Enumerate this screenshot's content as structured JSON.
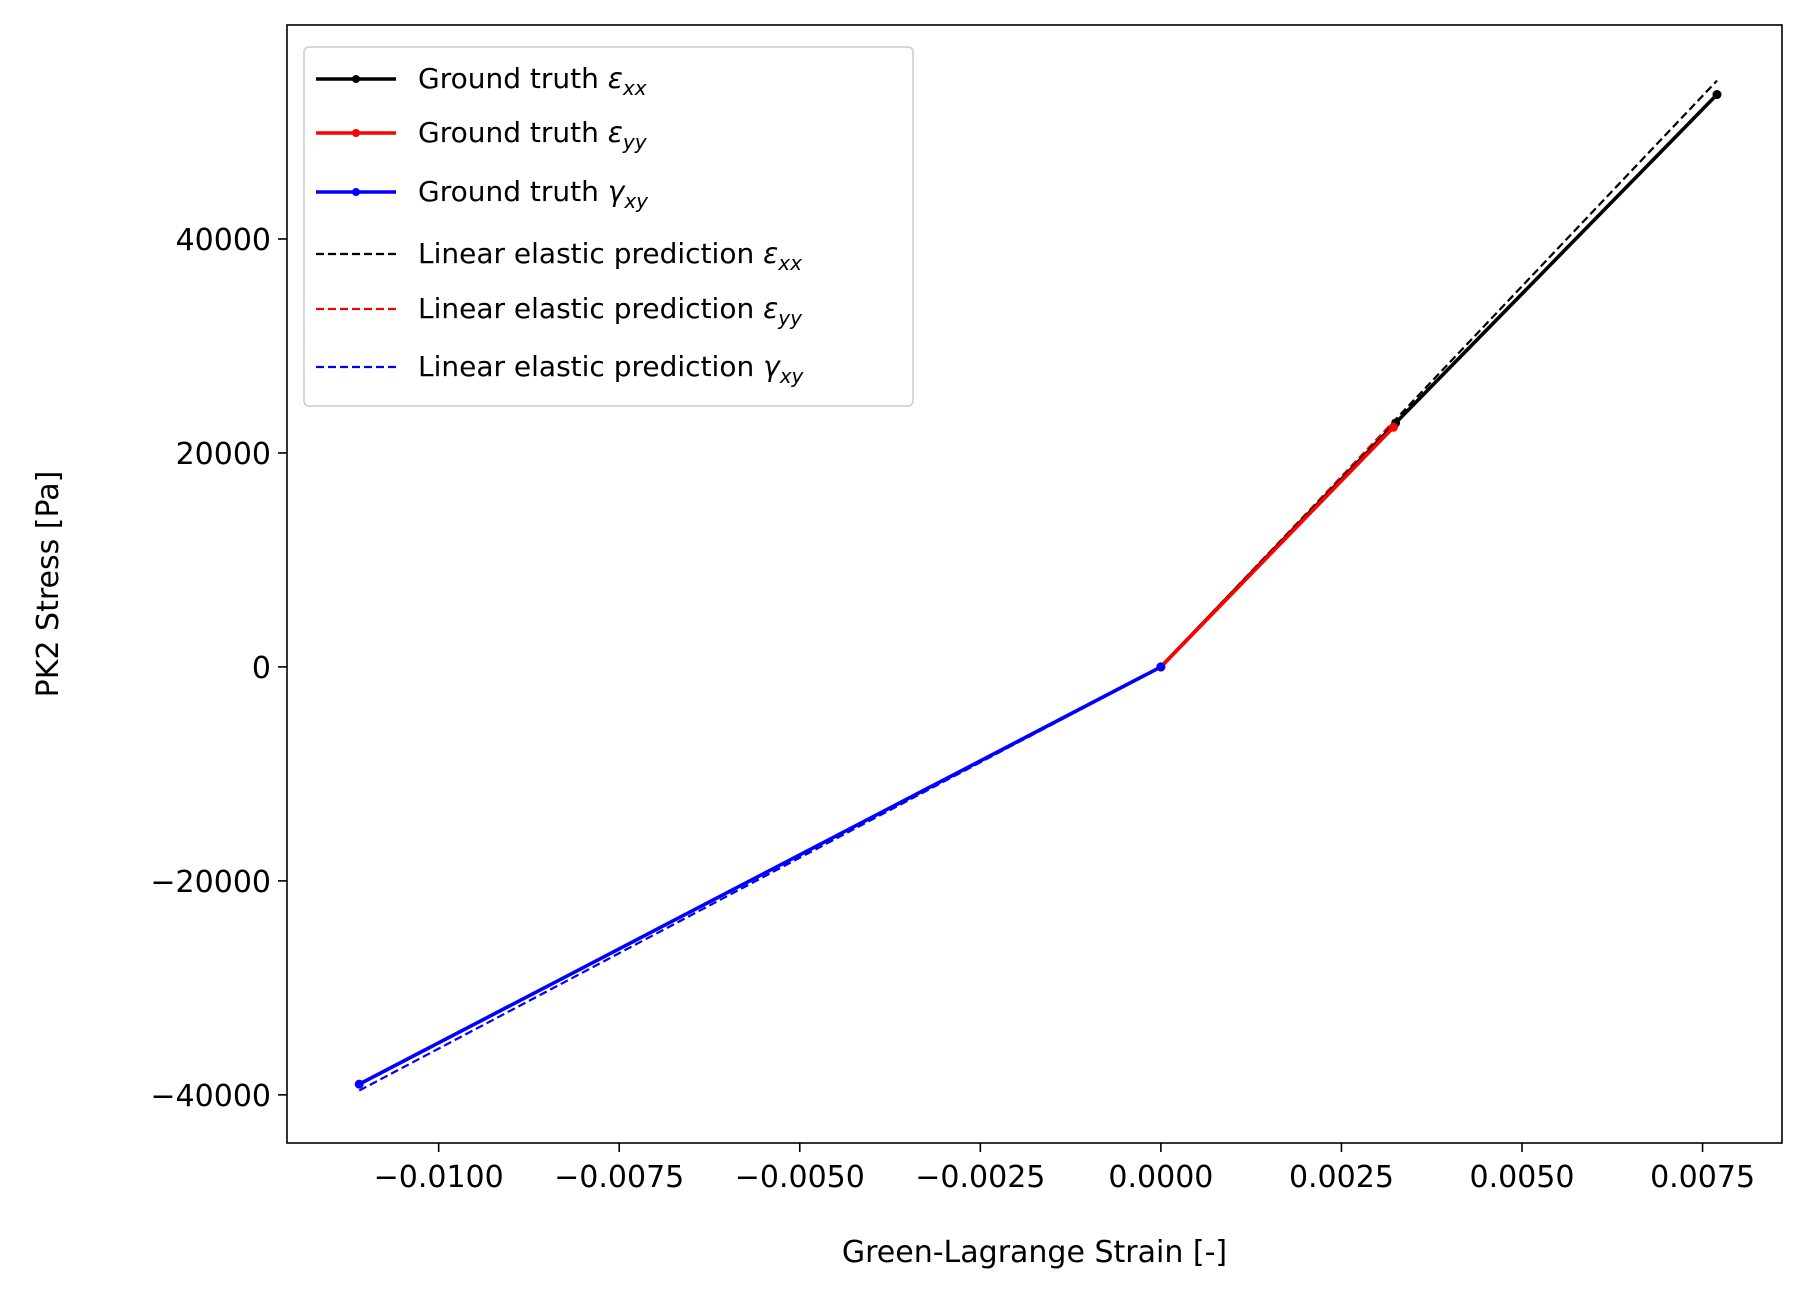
{
  "chart_data": {
    "type": "line",
    "title": "",
    "xlabel": "Green-Lagrange Strain [-]",
    "ylabel": "PK2 Stress [Pa]",
    "xlim": [
      -0.0121,
      0.0086
    ],
    "ylim": [
      -44500,
      60000
    ],
    "grid": false,
    "legend_position": "top-left",
    "x_ticks": [
      -0.01,
      -0.0075,
      -0.005,
      -0.0025,
      0.0,
      0.0025,
      0.005,
      0.0075
    ],
    "x_tick_labels": [
      "−0.0100",
      "−0.0075",
      "−0.0050",
      "−0.0025",
      "0.0000",
      "0.0025",
      "0.0050",
      "0.0075"
    ],
    "y_ticks": [
      -40000,
      -20000,
      0,
      20000,
      40000
    ],
    "y_tick_labels": [
      "−40000",
      "−20000",
      "0",
      "20000",
      "40000"
    ],
    "series": [
      {
        "name": "Ground truth",
        "sub": "xx",
        "greek": "ε",
        "color": "#000000",
        "style": "solid",
        "markers": true,
        "x": [
          0.0,
          0.00325,
          0.0077
        ],
        "y": [
          0,
          22800,
          53500
        ]
      },
      {
        "name": "Ground truth",
        "sub": "yy",
        "greek": "ε",
        "color": "#ff0000",
        "style": "solid",
        "markers": true,
        "x": [
          0.0,
          0.00322
        ],
        "y": [
          0,
          22400
        ]
      },
      {
        "name": "Ground truth",
        "sub": "xy",
        "greek": "γ",
        "color": "#0000ff",
        "style": "solid",
        "markers": true,
        "x": [
          -0.0111,
          0.0
        ],
        "y": [
          -39000,
          0
        ]
      },
      {
        "name": "Linear elastic prediction",
        "sub": "xx",
        "greek": "ε",
        "color": "#000000",
        "style": "dashed",
        "markers": false,
        "x": [
          0.0,
          0.0077
        ],
        "y": [
          0,
          54800
        ]
      },
      {
        "name": "Linear elastic prediction",
        "sub": "yy",
        "greek": "ε",
        "color": "#ff0000",
        "style": "dashed",
        "markers": false,
        "x": [
          0.0,
          0.00322
        ],
        "y": [
          0,
          22900
        ]
      },
      {
        "name": "Linear elastic prediction",
        "sub": "xy",
        "greek": "γ",
        "color": "#0000ff",
        "style": "dashed",
        "markers": false,
        "x": [
          -0.0111,
          0.0
        ],
        "y": [
          -39600,
          0
        ]
      }
    ]
  }
}
